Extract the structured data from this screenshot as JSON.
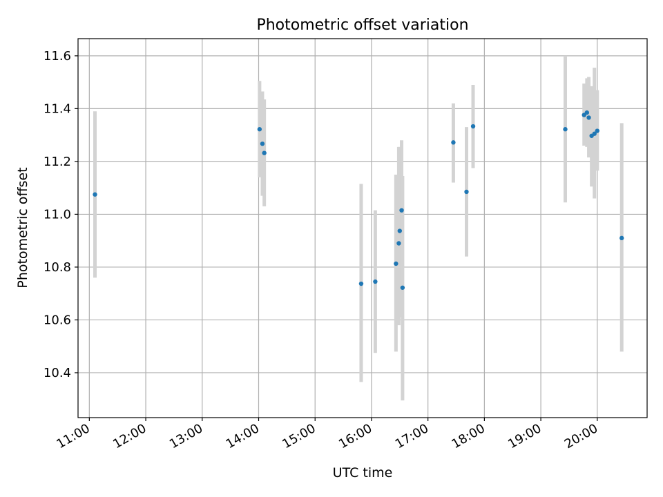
{
  "chart_data": {
    "type": "scatter",
    "title": "Photometric offset variation",
    "xlabel": "UTC time",
    "ylabel": "Photometric offset",
    "x_unit": "HH:MM",
    "xlim": [
      "10:48",
      "20:53"
    ],
    "ylim": [
      10.23,
      11.665
    ],
    "grid": true,
    "x_ticks": [
      "11:00",
      "12:00",
      "13:00",
      "14:00",
      "15:00",
      "16:00",
      "17:00",
      "18:00",
      "19:00",
      "20:00"
    ],
    "y_ticks": [
      10.4,
      10.6,
      10.8,
      11.0,
      11.2,
      11.4,
      11.6
    ],
    "y_tick_labels": [
      "10.4",
      "10.6",
      "10.8",
      "11.0",
      "11.2",
      "11.4",
      "11.6"
    ],
    "colors": {
      "point": "#1f77b4",
      "errorbar": "#d3d3d3",
      "grid": "#b0b0b0"
    },
    "series": [
      {
        "points": [
          {
            "x": "11:06",
            "y": 11.075,
            "err": [
              10.76,
              11.39
            ]
          },
          {
            "x": "14:01",
            "y": 11.322,
            "err": [
              11.14,
              11.505
            ]
          },
          {
            "x": "14:04",
            "y": 11.267,
            "err": [
              11.07,
              11.465
            ]
          },
          {
            "x": "14:06",
            "y": 11.232,
            "err": [
              11.03,
              11.435
            ]
          },
          {
            "x": "15:49",
            "y": 10.737,
            "err": [
              10.365,
              11.115
            ]
          },
          {
            "x": "16:04",
            "y": 10.745,
            "err": [
              10.475,
              11.015
            ]
          },
          {
            "x": "16:26",
            "y": 10.813,
            "err": [
              10.48,
              11.15
            ]
          },
          {
            "x": "16:29",
            "y": 10.89,
            "err": [
              10.58,
              11.255
            ]
          },
          {
            "x": "16:30",
            "y": 10.937,
            "err": [
              10.61,
              11.255
            ]
          },
          {
            "x": "16:32",
            "y": 11.015,
            "err": [
              10.75,
              11.28
            ]
          },
          {
            "x": "16:33",
            "y": 10.722,
            "err": [
              10.295,
              11.145
            ]
          },
          {
            "x": "17:27",
            "y": 11.272,
            "err": [
              11.12,
              11.42
            ]
          },
          {
            "x": "17:41",
            "y": 11.085,
            "err": [
              10.84,
              11.33
            ]
          },
          {
            "x": "17:48",
            "y": 11.333,
            "err": [
              11.175,
              11.49
            ]
          },
          {
            "x": "19:26",
            "y": 11.322,
            "err": [
              11.045,
              11.6
            ]
          },
          {
            "x": "19:46",
            "y": 11.376,
            "err": [
              11.26,
              11.495
            ]
          },
          {
            "x": "19:49",
            "y": 11.385,
            "err": [
              11.255,
              11.515
            ]
          },
          {
            "x": "19:51",
            "y": 11.366,
            "err": [
              11.215,
              11.52
            ]
          },
          {
            "x": "19:54",
            "y": 11.297,
            "err": [
              11.105,
              11.485
            ]
          },
          {
            "x": "19:57",
            "y": 11.305,
            "err": [
              11.06,
              11.555
            ]
          },
          {
            "x": "20:00",
            "y": 11.316,
            "err": [
              11.165,
              11.47
            ]
          },
          {
            "x": "20:26",
            "y": 10.91,
            "err": [
              10.48,
              11.345
            ]
          }
        ]
      }
    ]
  }
}
